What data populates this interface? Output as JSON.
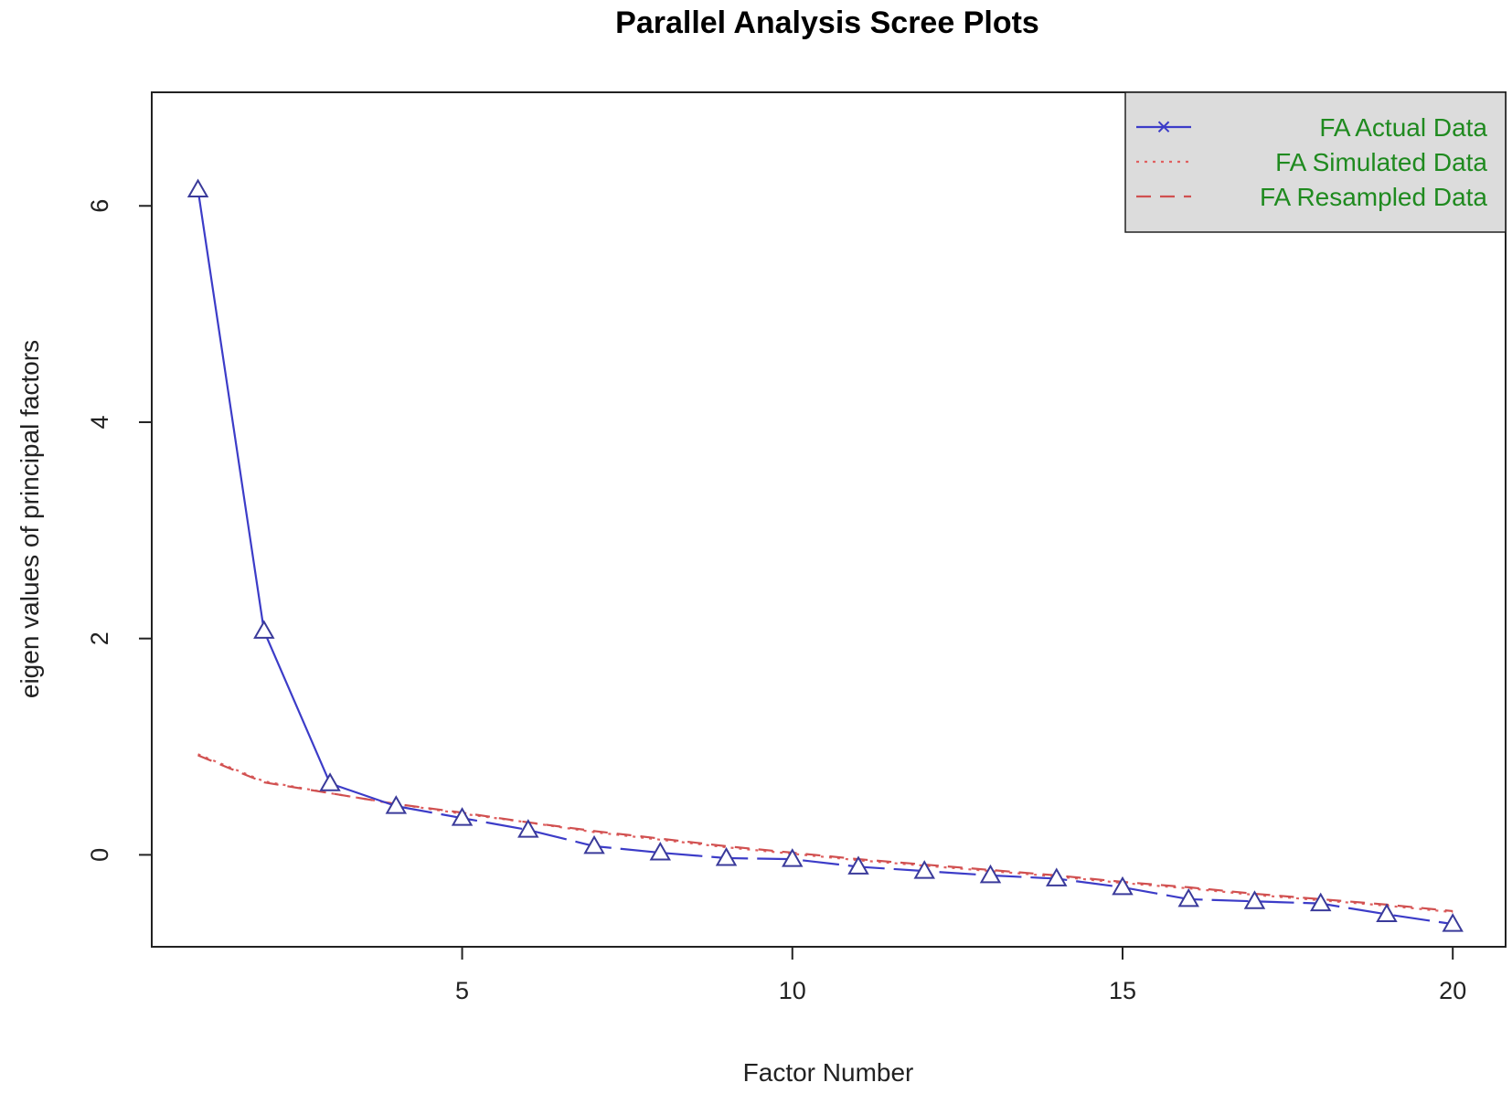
{
  "chart_data": {
    "type": "line",
    "title": "Parallel Analysis Scree Plots",
    "xlabel": "Factor Number",
    "ylabel": "eigen values of principal factors",
    "xlim": [
      0.3,
      20.8
    ],
    "ylim": [
      -0.85,
      7.05
    ],
    "x_ticks": [
      5,
      10,
      15,
      20
    ],
    "y_ticks": [
      0,
      2,
      4,
      6
    ],
    "grid": false,
    "legend_position": "top-right",
    "x": [
      1,
      2,
      3,
      4,
      5,
      6,
      7,
      8,
      9,
      10,
      11,
      12,
      13,
      14,
      15,
      16,
      17,
      18,
      19,
      20
    ],
    "series": [
      {
        "name": "FA  Actual Data",
        "legend_symbol": "×",
        "style": "solid",
        "marker": "triangle",
        "color": "#3c3cc8",
        "values": [
          6.15,
          2.07,
          0.66,
          0.45,
          0.34,
          0.23,
          0.08,
          0.02,
          -0.03,
          -0.04,
          -0.11,
          -0.15,
          -0.19,
          -0.22,
          -0.3,
          -0.41,
          -0.43,
          -0.45,
          -0.55,
          -0.64
        ]
      },
      {
        "name": "FA  Simulated Data",
        "style": "dotted",
        "color": "#e06060",
        "values": [
          0.93,
          0.68,
          0.57,
          0.47,
          0.38,
          0.3,
          0.21,
          0.14,
          0.07,
          0.01,
          -0.05,
          -0.1,
          -0.15,
          -0.2,
          -0.26,
          -0.31,
          -0.37,
          -0.42,
          -0.47,
          -0.53
        ]
      },
      {
        "name": "FA  Resampled Data",
        "style": "dashed",
        "color": "#d05050",
        "values": [
          0.92,
          0.67,
          0.57,
          0.47,
          0.39,
          0.3,
          0.22,
          0.15,
          0.08,
          0.02,
          -0.04,
          -0.09,
          -0.14,
          -0.19,
          -0.25,
          -0.3,
          -0.36,
          -0.41,
          -0.46,
          -0.52
        ]
      }
    ]
  }
}
